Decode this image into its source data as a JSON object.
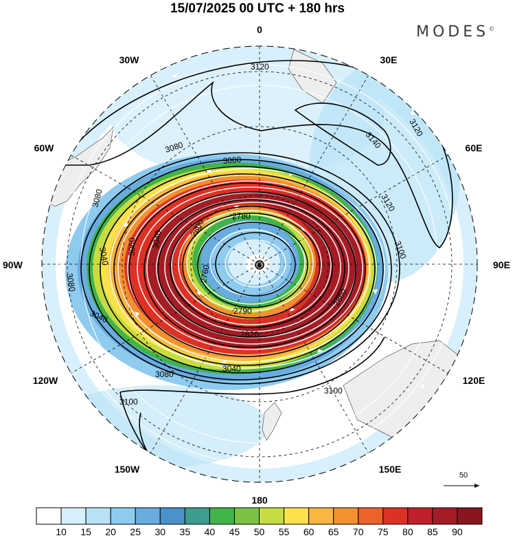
{
  "title": "15/07/2025  00 UTC  + 180 hrs",
  "brand": "MODES",
  "brand_mark": "©",
  "longitude_labels": [
    "0",
    "30E",
    "60E",
    "90E",
    "120E",
    "150E",
    "180",
    "150W",
    "120W",
    "90W",
    "60W",
    "30W"
  ],
  "contour_labels": [
    "3120",
    "3140",
    "3120",
    "3080",
    "3080",
    "3040",
    "3080",
    "3060",
    "3040",
    "3080",
    "3040",
    "3100",
    "3100",
    "3100",
    "3120",
    "2780",
    "2800",
    "2790",
    "2820",
    "2860",
    "3040",
    "3080",
    "2760"
  ],
  "vector_reference": "50",
  "colorbar": {
    "ticks": [
      "10",
      "15",
      "20",
      "25",
      "30",
      "35",
      "40",
      "45",
      "50",
      "55",
      "60",
      "65",
      "70",
      "75",
      "80",
      "85",
      "90"
    ],
    "colors": [
      "#ffffff",
      "#d8f0fb",
      "#b7e2f6",
      "#8ecbef",
      "#68ace0",
      "#4a92cc",
      "#3d9e8f",
      "#41b34a",
      "#7bc142",
      "#c6dc41",
      "#fbe24d",
      "#f8b740",
      "#f3902f",
      "#ec6228",
      "#dd3126",
      "#c0202a",
      "#a41d25",
      "#8a1520"
    ]
  },
  "colors": {
    "contour": "#000000",
    "vector": "#ffffff",
    "land": "#eeeeee",
    "graticule": "#000000"
  }
}
